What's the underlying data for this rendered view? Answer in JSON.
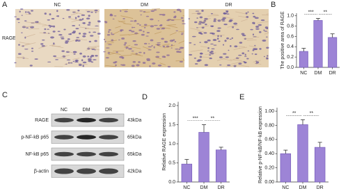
{
  "panel_labels": [
    "A",
    "B",
    "C",
    "D",
    "E"
  ],
  "panel_a": {
    "columns": [
      "NC",
      "DM",
      "DR"
    ],
    "row_label": "RAGE"
  },
  "panel_c": {
    "columns": [
      "NC",
      "DM",
      "DR"
    ],
    "rows": [
      {
        "label": "RAGE",
        "size": "43kDa"
      },
      {
        "label": "p-NF-kB p65",
        "size": "65kDa"
      },
      {
        "label": "NF-kB p65",
        "size": "65kDa"
      },
      {
        "label": "β-actin",
        "size": "42kDa"
      }
    ]
  },
  "chart_data": [
    {
      "type": "bar",
      "y_label": "The positive area of RAGE",
      "categories": [
        "NC",
        "DM",
        "DR"
      ],
      "values": [
        0.31,
        0.91,
        0.58
      ],
      "errors": [
        0.06,
        0.04,
        0.07
      ],
      "color": "#9d84d6",
      "ylim": [
        0,
        1.05
      ],
      "yticks": [
        {
          "value": 0,
          "label": "0.0"
        },
        0.2,
        0.4,
        0.6,
        0.8,
        {
          "value": 1,
          "label": "1.0"
        }
      ],
      "annotations": [
        "***",
        "**"
      ]
    },
    {
      "type": "bar",
      "y_label": "Relative RAGE expression",
      "categories": [
        "NC",
        "DM",
        "DR"
      ],
      "values": [
        0.47,
        1.3,
        0.84
      ],
      "errors": [
        0.12,
        0.2,
        0.07
      ],
      "color": "#9d84d6",
      "ylim": [
        0,
        2.1
      ],
      "yticks": [
        {
          "value": 0,
          "label": "0.0"
        },
        0.5,
        {
          "value": 1,
          "label": "1.0"
        },
        1.5,
        {
          "value": 2,
          "label": "2.0"
        }
      ],
      "annotations": [
        "***",
        "**"
      ]
    },
    {
      "type": "bar",
      "y_label": "Relative p-NF-kB/NF-kB expression",
      "categories": [
        "NC",
        "DM",
        "DR"
      ],
      "values": [
        0.4,
        0.81,
        0.49
      ],
      "errors": [
        0.05,
        0.07,
        0.07
      ],
      "color": "#9d84d6",
      "ylim": [
        0,
        1.05
      ],
      "yticks": [
        {
          "value": 0,
          "label": "0.00"
        },
        {
          "value": 0.2,
          "label": "0.20"
        },
        {
          "value": 0.4,
          "label": "0.40"
        },
        {
          "value": 0.6,
          "label": "0.60"
        },
        {
          "value": 0.8,
          "label": "0.80"
        },
        {
          "value": 1,
          "label": "1.00"
        }
      ],
      "annotations": [
        "**",
        "**"
      ]
    }
  ]
}
